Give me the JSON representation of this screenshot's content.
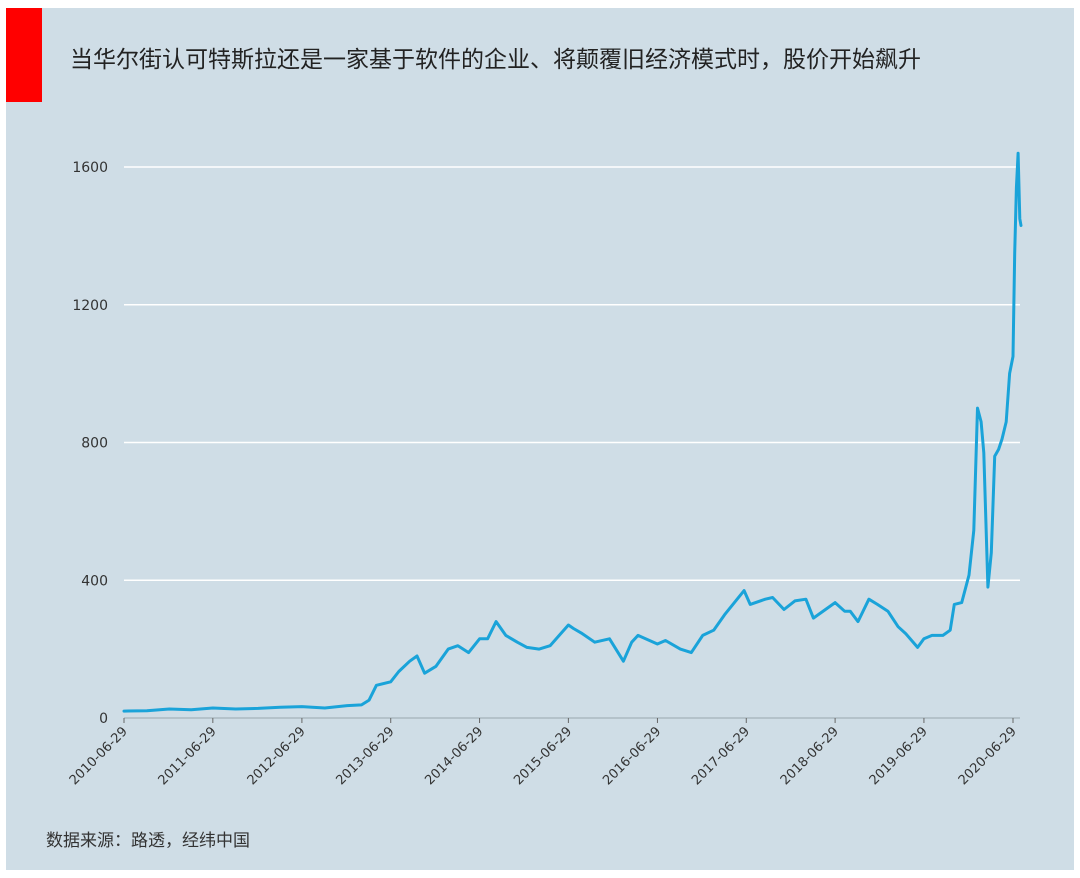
{
  "colors": {
    "background": "#cfdde6",
    "accent": "#ff0000",
    "line": "#1aa3d9",
    "grid": "#ffffff"
  },
  "title": "当华尔街认可特斯拉还是一家基于软件的企业、将颠覆旧经济模式时，股价开始飙升",
  "source": "数据来源：路透，经纬中国",
  "chart_data": {
    "type": "line",
    "title": "当华尔街认可特斯拉还是一家基于软件的企业、将颠覆旧经济模式时，股价开始飙升",
    "xlabel": "",
    "ylabel": "",
    "ylim": [
      0,
      1750
    ],
    "yticks": [
      0,
      400,
      800,
      1200,
      1600
    ],
    "xticks": [
      "2010-06-29",
      "2011-06-29",
      "2012-06-29",
      "2013-06-29",
      "2014-06-29",
      "2015-06-29",
      "2016-06-29",
      "2017-06-29",
      "2018-06-29",
      "2019-06-29",
      "2020-06-29"
    ],
    "grid": "horizontal",
    "legend": "none",
    "series": [
      {
        "x": [
          "2010-06-29",
          "2010-10-01",
          "2011-01-01",
          "2011-04-01",
          "2011-06-29",
          "2011-10-01",
          "2012-01-01",
          "2012-04-01",
          "2012-06-29",
          "2012-10-01",
          "2013-01-01",
          "2013-03-01",
          "2013-04-01",
          "2013-05-01",
          "2013-06-29",
          "2013-08-01",
          "2013-09-15",
          "2013-10-15",
          "2013-11-15",
          "2014-01-01",
          "2014-02-20",
          "2014-04-01",
          "2014-05-15",
          "2014-06-29",
          "2014-08-01",
          "2014-09-05",
          "2014-10-15",
          "2014-12-01",
          "2015-01-10",
          "2015-03-01",
          "2015-04-15",
          "2015-06-29",
          "2015-07-20",
          "2015-08-25",
          "2015-10-15",
          "2015-12-15",
          "2016-02-10",
          "2016-03-15",
          "2016-04-10",
          "2016-06-29",
          "2016-08-01",
          "2016-10-01",
          "2016-11-15",
          "2017-01-01",
          "2017-02-15",
          "2017-04-01",
          "2017-06-20",
          "2017-07-15",
          "2017-09-15",
          "2017-10-15",
          "2017-12-01",
          "2018-01-15",
          "2018-03-01",
          "2018-04-01",
          "2018-06-29",
          "2018-08-07",
          "2018-08-30",
          "2018-10-01",
          "2018-11-15",
          "2018-12-20",
          "2019-02-01",
          "2019-03-15",
          "2019-04-15",
          "2019-06-03",
          "2019-06-29",
          "2019-08-01",
          "2019-09-15",
          "2019-10-15",
          "2019-11-01",
          "2019-12-01",
          "2019-12-31",
          "2020-01-20",
          "2020-02-04",
          "2020-02-19",
          "2020-03-01",
          "2020-03-18",
          "2020-04-01",
          "2020-04-15",
          "2020-05-01",
          "2020-05-15",
          "2020-06-01",
          "2020-06-15",
          "2020-06-29",
          "2020-07-06",
          "2020-07-13",
          "2020-07-20",
          "2020-07-27",
          "2020-08-01"
        ],
        "values": [
          20,
          21,
          26,
          24,
          29,
          26,
          28,
          31,
          33,
          29,
          36,
          38,
          52,
          95,
          105,
          135,
          165,
          180,
          130,
          150,
          200,
          210,
          190,
          230,
          230,
          280,
          240,
          220,
          205,
          200,
          210,
          270,
          260,
          245,
          220,
          230,
          165,
          220,
          240,
          215,
          225,
          200,
          190,
          240,
          255,
          300,
          370,
          330,
          345,
          350,
          315,
          340,
          345,
          290,
          335,
          310,
          310,
          280,
          345,
          330,
          310,
          265,
          245,
          205,
          230,
          240,
          240,
          255,
          330,
          335,
          415,
          545,
          900,
          860,
          770,
          380,
          480,
          760,
          780,
          810,
          860,
          1000,
          1050,
          1350,
          1540,
          1640,
          1450,
          1430
        ]
      }
    ]
  }
}
